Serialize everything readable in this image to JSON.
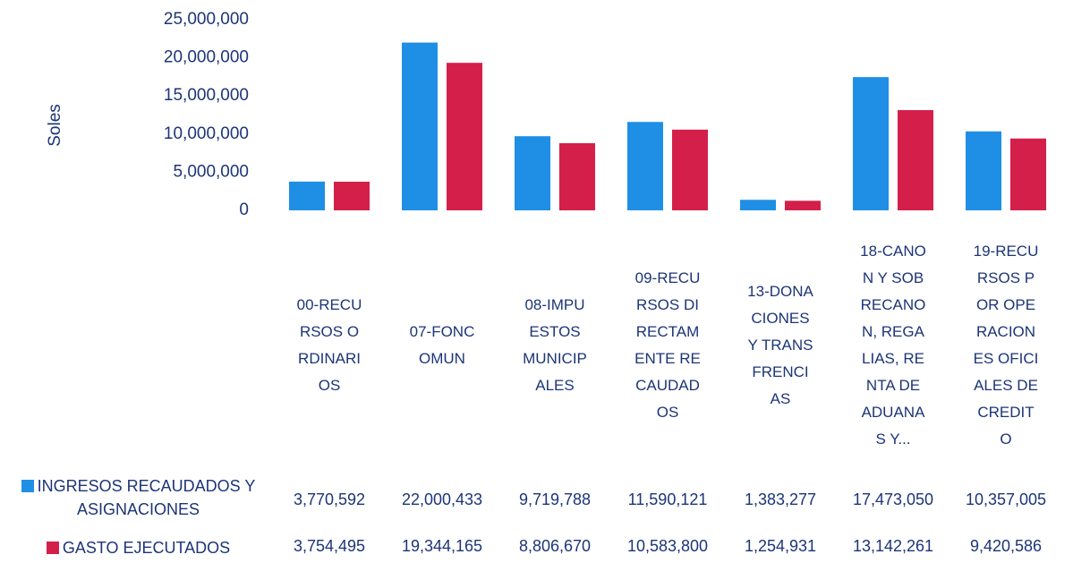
{
  "chart_data": {
    "type": "bar",
    "y_label": "Soles",
    "categories": [
      "00-RECURSOS ORDINARIOS",
      "07-FONCOMUN",
      "08-IMPUESTOS MUNICIPALES",
      "09-RECURSOS DIRECTAMENTE RECAUDADOS",
      "13-DONACIONES Y TRANSFRENCIAS",
      "18-CANON Y SOBRECANON, REGALIAS, RENTA DE ADUANAS Y...",
      "19-RECURSOS POR OPERACIONES OFICIALES DE CREDITO"
    ],
    "series": [
      {
        "name": "INGRESOS RECAUDADOS Y ASIGNACIONES",
        "color": "#1f8fe6",
        "values": [
          3770592,
          22000433,
          9719788,
          11590121,
          1383277,
          17473050,
          10357005
        ],
        "value_labels": [
          "3,770,592",
          "22,000,433",
          "9,719,788",
          "11,590,121",
          "1,383,277",
          "17,473,050",
          "10,357,005"
        ]
      },
      {
        "name": "GASTO EJECUTADOS",
        "color": "#d41f4b",
        "values": [
          3754495,
          19344165,
          8806670,
          10583800,
          1254931,
          13142261,
          9420586
        ],
        "value_labels": [
          "3,754,495",
          "19,344,165",
          "8,806,670",
          "10,583,800",
          "1,254,931",
          "13,142,261",
          "9,420,586"
        ]
      }
    ],
    "ylim": [
      0,
      25000000
    ],
    "yticks": [
      0,
      {
        "value": 5000000,
        "label": "5,000,000"
      },
      {
        "value": 10000000,
        "label": "10,000,000"
      },
      {
        "value": 15000000,
        "label": "15,000,000"
      },
      {
        "value": 20000000,
        "label": "20,000,000"
      },
      {
        "value": 25000000,
        "label": "25,000,000"
      }
    ],
    "grid": false,
    "data_table": true
  }
}
